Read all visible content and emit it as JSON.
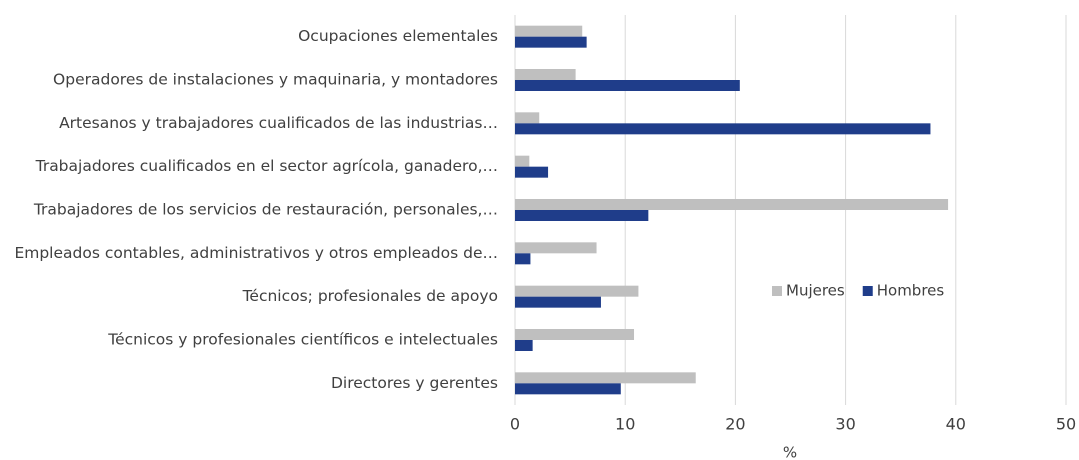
{
  "chart_data": {
    "type": "barh",
    "categories": [
      "Ocupaciones elementales",
      "Operadores de instalaciones y maquinaria, y montadores",
      "Artesanos y trabajadores cualificados de las industrias…",
      "Trabajadores cualificados en el sector agrícola, ganadero,…",
      "Trabajadores de los servicios de restauración, personales,…",
      "Empleados contables, administrativos y otros empleados de…",
      "Técnicos; profesionales de apoyo",
      "Técnicos y profesionales científicos e intelectuales",
      "Directores y gerentes"
    ],
    "series": [
      {
        "name": "Mujeres",
        "color": "#bfbfbf",
        "values": [
          6.1,
          5.5,
          2.2,
          1.3,
          39.3,
          7.4,
          11.2,
          10.8,
          16.4
        ]
      },
      {
        "name": "Hombres",
        "color": "#1f3d8a",
        "values": [
          6.5,
          20.4,
          37.7,
          3.0,
          12.1,
          1.4,
          7.8,
          1.6,
          9.6
        ]
      }
    ],
    "xlabel": "%",
    "xlim": [
      0,
      50
    ],
    "xticks": [
      0,
      10,
      20,
      30,
      40,
      50
    ],
    "grid": true
  }
}
